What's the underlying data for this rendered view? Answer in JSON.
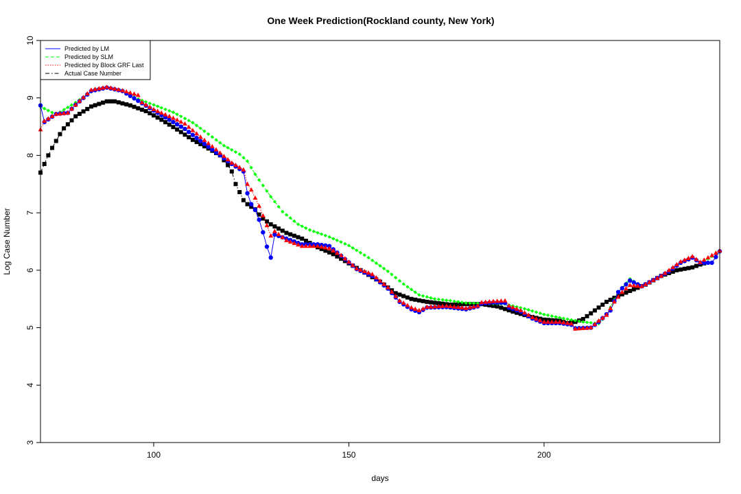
{
  "chart_data": {
    "type": "line",
    "title": "One Week Prediction(Rockland county, New York)",
    "xlabel": "days",
    "ylabel": "Log Case Number",
    "xlim": [
      71,
      245
    ],
    "ylim": [
      3,
      10
    ],
    "xticks": [
      100,
      150,
      200
    ],
    "yticks": [
      3,
      4,
      5,
      6,
      7,
      8,
      9,
      10
    ],
    "grid": false,
    "legend_position": "top-left",
    "series": [
      {
        "name": "Predicted by LM",
        "color": "#0000ff",
        "line": "solid",
        "marker": "circle",
        "knots": [
          [
            71,
            8.87
          ],
          [
            72,
            8.58
          ],
          [
            75,
            8.72
          ],
          [
            78,
            8.74
          ],
          [
            80,
            8.88
          ],
          [
            84,
            9.12
          ],
          [
            88,
            9.18
          ],
          [
            92,
            9.12
          ],
          [
            96,
            8.95
          ],
          [
            100,
            8.78
          ],
          [
            104,
            8.62
          ],
          [
            108,
            8.46
          ],
          [
            112,
            8.25
          ],
          [
            116,
            8.05
          ],
          [
            120,
            7.85
          ],
          [
            123,
            7.72
          ],
          [
            124,
            7.34
          ],
          [
            125,
            7.15
          ],
          [
            126,
            7.05
          ],
          [
            127,
            6.88
          ],
          [
            128,
            6.66
          ],
          [
            129,
            6.41
          ],
          [
            130,
            6.22
          ],
          [
            131,
            6.62
          ],
          [
            134,
            6.55
          ],
          [
            138,
            6.45
          ],
          [
            142,
            6.45
          ],
          [
            145,
            6.42
          ],
          [
            148,
            6.25
          ],
          [
            152,
            6.02
          ],
          [
            156,
            5.9
          ],
          [
            160,
            5.68
          ],
          [
            163,
            5.45
          ],
          [
            166,
            5.32
          ],
          [
            168,
            5.27
          ],
          [
            170,
            5.35
          ],
          [
            175,
            5.36
          ],
          [
            180,
            5.32
          ],
          [
            183,
            5.37
          ],
          [
            184,
            5.42
          ],
          [
            187,
            5.44
          ],
          [
            190,
            5.43
          ],
          [
            191,
            5.35
          ],
          [
            194,
            5.28
          ],
          [
            197,
            5.16
          ],
          [
            200,
            5.08
          ],
          [
            204,
            5.08
          ],
          [
            207,
            5.05
          ],
          [
            208,
            4.99
          ],
          [
            212,
            5.0
          ],
          [
            214,
            5.1
          ],
          [
            217,
            5.3
          ],
          [
            219,
            5.62
          ],
          [
            222,
            5.82
          ],
          [
            225,
            5.72
          ],
          [
            230,
            5.9
          ],
          [
            232,
            5.98
          ],
          [
            235,
            6.13
          ],
          [
            238,
            6.22
          ],
          [
            240,
            6.13
          ],
          [
            243,
            6.13
          ],
          [
            245,
            6.33
          ]
        ]
      },
      {
        "name": "Predicted by SLM",
        "color": "#00ff00",
        "line": "dashed",
        "marker": "diamond",
        "knots": [
          [
            71,
            8.85
          ],
          [
            75,
            8.71
          ],
          [
            80,
            8.92
          ],
          [
            85,
            9.16
          ],
          [
            88,
            9.18
          ],
          [
            92,
            9.12
          ],
          [
            96,
            8.98
          ],
          [
            100,
            8.88
          ],
          [
            105,
            8.75
          ],
          [
            110,
            8.57
          ],
          [
            115,
            8.32
          ],
          [
            118,
            8.17
          ],
          [
            122,
            8.02
          ],
          [
            124,
            7.9
          ],
          [
            126,
            7.67
          ],
          [
            130,
            7.28
          ],
          [
            133,
            7.02
          ],
          [
            137,
            6.8
          ],
          [
            140,
            6.7
          ],
          [
            145,
            6.58
          ],
          [
            150,
            6.43
          ],
          [
            155,
            6.22
          ],
          [
            160,
            5.98
          ],
          [
            164,
            5.76
          ],
          [
            168,
            5.57
          ],
          [
            172,
            5.5
          ],
          [
            176,
            5.47
          ],
          [
            180,
            5.43
          ],
          [
            185,
            5.42
          ],
          [
            190,
            5.41
          ],
          [
            195,
            5.33
          ],
          [
            200,
            5.23
          ],
          [
            205,
            5.16
          ],
          [
            210,
            5.1
          ],
          [
            214,
            5.07
          ],
          [
            216,
            5.22
          ],
          [
            219,
            5.62
          ],
          [
            222,
            5.85
          ],
          [
            225,
            5.72
          ],
          [
            230,
            5.89
          ],
          [
            235,
            6.14
          ],
          [
            238,
            6.22
          ],
          [
            240,
            6.12
          ],
          [
            245,
            6.32
          ]
        ]
      },
      {
        "name": "Predicted by Block GRF Last",
        "color": "#ff0000",
        "line": "dotted",
        "marker": "triangle",
        "knots": [
          [
            71,
            8.45
          ],
          [
            72,
            8.6
          ],
          [
            75,
            8.72
          ],
          [
            78,
            8.74
          ],
          [
            80,
            8.88
          ],
          [
            84,
            9.14
          ],
          [
            88,
            9.19
          ],
          [
            92,
            9.13
          ],
          [
            96,
            9.05
          ],
          [
            97,
            8.92
          ],
          [
            100,
            8.8
          ],
          [
            105,
            8.65
          ],
          [
            108,
            8.55
          ],
          [
            112,
            8.32
          ],
          [
            116,
            8.1
          ],
          [
            120,
            7.87
          ],
          [
            123,
            7.75
          ],
          [
            124,
            7.5
          ],
          [
            125,
            7.4
          ],
          [
            126,
            7.26
          ],
          [
            127,
            7.12
          ],
          [
            128,
            6.95
          ],
          [
            129,
            6.78
          ],
          [
            130,
            6.6
          ],
          [
            131,
            6.68
          ],
          [
            134,
            6.52
          ],
          [
            138,
            6.42
          ],
          [
            142,
            6.42
          ],
          [
            145,
            6.38
          ],
          [
            148,
            6.26
          ],
          [
            152,
            6.03
          ],
          [
            156,
            5.93
          ],
          [
            160,
            5.7
          ],
          [
            163,
            5.47
          ],
          [
            166,
            5.35
          ],
          [
            168,
            5.3
          ],
          [
            170,
            5.36
          ],
          [
            175,
            5.38
          ],
          [
            180,
            5.34
          ],
          [
            183,
            5.38
          ],
          [
            184,
            5.44
          ],
          [
            187,
            5.46
          ],
          [
            190,
            5.47
          ],
          [
            191,
            5.38
          ],
          [
            194,
            5.3
          ],
          [
            197,
            5.18
          ],
          [
            200,
            5.1
          ],
          [
            204,
            5.1
          ],
          [
            207,
            5.07
          ],
          [
            208,
            4.98
          ],
          [
            212,
            5.0
          ],
          [
            214,
            5.12
          ],
          [
            216,
            5.22
          ],
          [
            218,
            5.45
          ],
          [
            220,
            5.62
          ],
          [
            222,
            5.74
          ],
          [
            225,
            5.72
          ],
          [
            230,
            5.9
          ],
          [
            235,
            6.15
          ],
          [
            238,
            6.24
          ],
          [
            240,
            6.14
          ],
          [
            245,
            6.34
          ]
        ]
      },
      {
        "name": "Actual Case Number",
        "color": "#000000",
        "line": "dashdot",
        "marker": "square",
        "knots": [
          [
            71,
            7.7
          ],
          [
            72,
            7.85
          ],
          [
            73,
            8.0
          ],
          [
            74,
            8.13
          ],
          [
            75,
            8.25
          ],
          [
            76,
            8.37
          ],
          [
            77,
            8.47
          ],
          [
            80,
            8.68
          ],
          [
            84,
            8.85
          ],
          [
            88,
            8.94
          ],
          [
            90,
            8.94
          ],
          [
            94,
            8.87
          ],
          [
            98,
            8.77
          ],
          [
            102,
            8.62
          ],
          [
            106,
            8.45
          ],
          [
            110,
            8.27
          ],
          [
            114,
            8.12
          ],
          [
            117,
            8.0
          ],
          [
            119,
            7.83
          ],
          [
            120,
            7.72
          ],
          [
            121,
            7.5
          ],
          [
            122,
            7.36
          ],
          [
            123,
            7.22
          ],
          [
            124,
            7.15
          ],
          [
            126,
            7.06
          ],
          [
            127,
            6.97
          ],
          [
            128,
            6.9
          ],
          [
            130,
            6.8
          ],
          [
            134,
            6.65
          ],
          [
            138,
            6.55
          ],
          [
            142,
            6.4
          ],
          [
            146,
            6.28
          ],
          [
            150,
            6.12
          ],
          [
            154,
            5.96
          ],
          [
            158,
            5.8
          ],
          [
            162,
            5.6
          ],
          [
            166,
            5.5
          ],
          [
            170,
            5.45
          ],
          [
            176,
            5.4
          ],
          [
            180,
            5.41
          ],
          [
            184,
            5.41
          ],
          [
            188,
            5.37
          ],
          [
            192,
            5.28
          ],
          [
            196,
            5.2
          ],
          [
            200,
            5.14
          ],
          [
            204,
            5.12
          ],
          [
            206,
            5.08
          ],
          [
            208,
            5.1
          ],
          [
            210,
            5.15
          ],
          [
            212,
            5.25
          ],
          [
            214,
            5.35
          ],
          [
            216,
            5.45
          ],
          [
            218,
            5.52
          ],
          [
            222,
            5.64
          ],
          [
            226,
            5.75
          ],
          [
            230,
            5.9
          ],
          [
            234,
            6.0
          ],
          [
            238,
            6.05
          ],
          [
            240,
            6.1
          ],
          [
            241,
            6.12
          ]
        ]
      }
    ]
  }
}
